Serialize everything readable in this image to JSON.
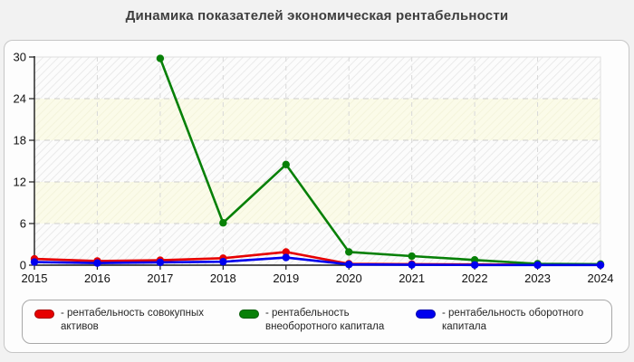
{
  "page": {
    "title": "Динамика показателей экономическая рентабельности"
  },
  "chart_data": {
    "type": "line",
    "title": "Динамика показателей экономическая рентабельности",
    "categories": [
      "2015",
      "2016",
      "2017",
      "2018",
      "2019",
      "2020",
      "2021",
      "2022",
      "2023",
      "2024"
    ],
    "y_ticks": [
      0,
      6,
      12,
      18,
      24,
      30
    ],
    "ylim": [
      0,
      30
    ],
    "xlabel": "",
    "ylabel": "",
    "grid": true,
    "legend_position": "bottom",
    "plot_band_colors": {
      "hatched": "#fcfcfc",
      "cream": "#fbfbe9"
    },
    "series": [
      {
        "name": "- рентабельность совокупных активов",
        "color": "#e60000",
        "values": [
          0.9,
          0.6,
          0.7,
          1.0,
          1.9,
          0.2,
          0.15,
          0.1,
          0.05,
          0.05
        ]
      },
      {
        "name": "- рентабельность внеоборотного капитала",
        "color": "#078007",
        "values": [
          null,
          null,
          29.8,
          6.1,
          14.5,
          1.9,
          1.3,
          0.75,
          0.2,
          0.15
        ]
      },
      {
        "name": "- рентабельность оборотного капитала",
        "color": "#0000ee",
        "values": [
          0.45,
          0.3,
          0.4,
          0.5,
          1.1,
          0.1,
          0.05,
          0.03,
          0.02,
          0.02
        ]
      }
    ]
  }
}
